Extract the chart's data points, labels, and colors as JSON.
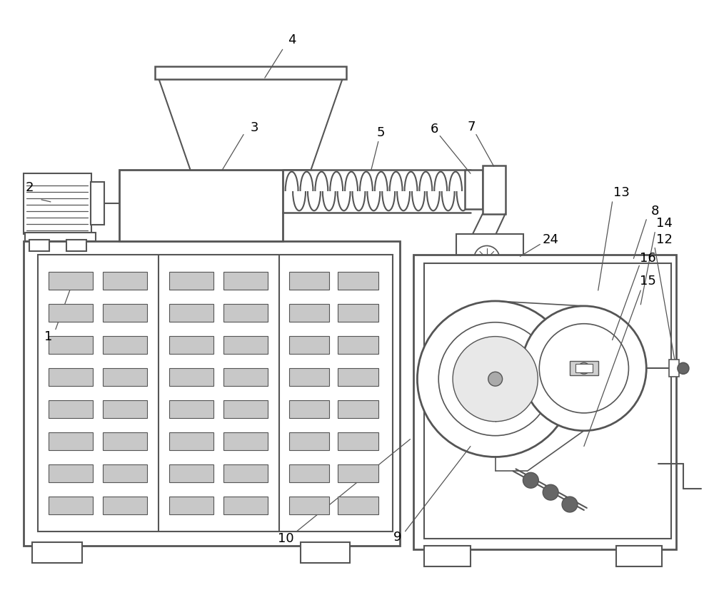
{
  "background_color": "#ffffff",
  "line_color": "#555555",
  "line_width": 1.5,
  "figsize": [
    10.0,
    8.27
  ],
  "dpi": 100
}
